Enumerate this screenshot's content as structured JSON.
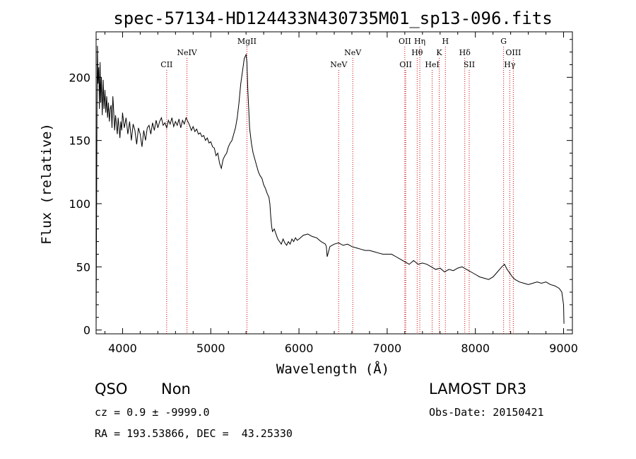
{
  "chart_data": {
    "type": "line",
    "title": "spec-57134-HD124433N430735M01_sp13-096.fits",
    "xlabel": "Wavelength (Å)",
    "ylabel": "Flux (relative)",
    "xlim": [
      3700,
      9100
    ],
    "ylim": [
      -3,
      236
    ],
    "xticks": [
      4000,
      5000,
      6000,
      7000,
      8000,
      9000
    ],
    "yticks": [
      0,
      50,
      100,
      150,
      200
    ],
    "grid": false,
    "line_color": "#000000",
    "marker_color": "#cc0000",
    "series": [
      {
        "x": [
          3700,
          3710,
          3715,
          3722,
          3730,
          3738,
          3745,
          3752,
          3760,
          3770,
          3780,
          3790,
          3800,
          3810,
          3820,
          3830,
          3840,
          3850,
          3860,
          3870,
          3880,
          3890,
          3900,
          3910,
          3920,
          3930,
          3940,
          3950,
          3960,
          3970,
          3980,
          3990,
          4000,
          4020,
          4040,
          4060,
          4080,
          4100,
          4120,
          4140,
          4160,
          4180,
          4200,
          4220,
          4240,
          4260,
          4280,
          4300,
          4320,
          4340,
          4360,
          4380,
          4400,
          4420,
          4440,
          4460,
          4480,
          4500,
          4520,
          4540,
          4560,
          4580,
          4600,
          4620,
          4640,
          4660,
          4680,
          4700,
          4720,
          4740,
          4760,
          4780,
          4800,
          4820,
          4840,
          4860,
          4880,
          4900,
          4920,
          4940,
          4960,
          4980,
          5000,
          5020,
          5040,
          5060,
          5080,
          5100,
          5120,
          5140,
          5160,
          5180,
          5200,
          5220,
          5240,
          5260,
          5280,
          5300,
          5320,
          5340,
          5360,
          5380,
          5400,
          5410,
          5420,
          5440,
          5460,
          5480,
          5500,
          5520,
          5540,
          5560,
          5580,
          5600,
          5620,
          5640,
          5660,
          5670,
          5680,
          5690,
          5700,
          5720,
          5740,
          5760,
          5780,
          5800,
          5820,
          5840,
          5860,
          5880,
          5900,
          5920,
          5940,
          5960,
          5980,
          6000,
          6050,
          6100,
          6150,
          6200,
          6250,
          6300,
          6310,
          6320,
          6350,
          6400,
          6450,
          6500,
          6550,
          6600,
          6650,
          6700,
          6750,
          6800,
          6850,
          6900,
          6950,
          7000,
          7050,
          7100,
          7150,
          7200,
          7250,
          7300,
          7350,
          7400,
          7450,
          7500,
          7550,
          7600,
          7650,
          7700,
          7750,
          7800,
          7850,
          7900,
          7950,
          8000,
          8050,
          8100,
          8150,
          8200,
          8250,
          8300,
          8330,
          8360,
          8390,
          8420,
          8450,
          8500,
          8550,
          8600,
          8650,
          8700,
          8750,
          8800,
          8850,
          8900,
          8950,
          8980,
          9000,
          9005
        ],
        "y": [
          0,
          170,
          225,
          195,
          208,
          175,
          212,
          180,
          200,
          170,
          198,
          175,
          190,
          172,
          185,
          168,
          180,
          165,
          175,
          178,
          160,
          185,
          172,
          158,
          170,
          163,
          155,
          168,
          160,
          152,
          165,
          158,
          172,
          160,
          168,
          155,
          165,
          150,
          163,
          158,
          147,
          160,
          155,
          145,
          158,
          150,
          160,
          162,
          155,
          164,
          158,
          166,
          160,
          165,
          168,
          162,
          164,
          160,
          166,
          163,
          168,
          161,
          165,
          162,
          167,
          160,
          166,
          163,
          168,
          165,
          162,
          158,
          161,
          157,
          159,
          155,
          156,
          153,
          154,
          150,
          152,
          148,
          149,
          145,
          144,
          138,
          140,
          132,
          128,
          135,
          138,
          140,
          145,
          148,
          150,
          155,
          160,
          168,
          180,
          195,
          205,
          215,
          218,
          212,
          190,
          160,
          148,
          140,
          135,
          130,
          125,
          122,
          120,
          115,
          112,
          108,
          105,
          100,
          90,
          82,
          78,
          80,
          76,
          72,
          70,
          68,
          72,
          69,
          67,
          70,
          68,
          72,
          70,
          73,
          71,
          72,
          75,
          76,
          74,
          73,
          70,
          68,
          66,
          58,
          66,
          68,
          69,
          67,
          68,
          66,
          65,
          64,
          63,
          63,
          62,
          61,
          60,
          60,
          60,
          58,
          56,
          54,
          52,
          55,
          52,
          53,
          52,
          50,
          48,
          49,
          46,
          48,
          47,
          49,
          50,
          48,
          46,
          44,
          42,
          41,
          40,
          42,
          46,
          50,
          52,
          48,
          45,
          42,
          40,
          38,
          37,
          36,
          37,
          38,
          37,
          38,
          36,
          35,
          33,
          30,
          20,
          5
        ]
      }
    ],
    "lines": [
      {
        "wavelength": 4500,
        "label": "CII",
        "row": 3
      },
      {
        "wavelength": 4730,
        "label": "NeIV",
        "row": 2
      },
      {
        "wavelength": 5410,
        "label": "MgII",
        "row": 1
      },
      {
        "wavelength": 6450,
        "label": "NeV",
        "row": 3
      },
      {
        "wavelength": 6610,
        "label": "NeV",
        "row": 2
      },
      {
        "wavelength": 7200,
        "label": "OII",
        "row": 1
      },
      {
        "wavelength": 7210,
        "label": "OII",
        "row": 3
      },
      {
        "wavelength": 7340,
        "label": "Hθ",
        "row": 2
      },
      {
        "wavelength": 7370,
        "label": "Hη",
        "row": 1
      },
      {
        "wavelength": 7510,
        "label": "HeI",
        "row": 3
      },
      {
        "wavelength": 7590,
        "label": "K",
        "row": 2
      },
      {
        "wavelength": 7660,
        "label": "H",
        "row": 1
      },
      {
        "wavelength": 7880,
        "label": "Hδ",
        "row": 2
      },
      {
        "wavelength": 7930,
        "label": "SII",
        "row": 3
      },
      {
        "wavelength": 8320,
        "label": "G",
        "row": 1
      },
      {
        "wavelength": 8390,
        "label": "Hγ",
        "row": 3
      },
      {
        "wavelength": 8430,
        "label": "OIII",
        "row": 2
      }
    ]
  },
  "info": {
    "class": "QSO",
    "subclass": "Non",
    "cz": "cz = 0.9 ± -9999.0",
    "coords": "RA = 193.53866, DEC =  43.25330",
    "survey": "LAMOST DR3",
    "obs_date": "Obs-Date: 20150421"
  }
}
